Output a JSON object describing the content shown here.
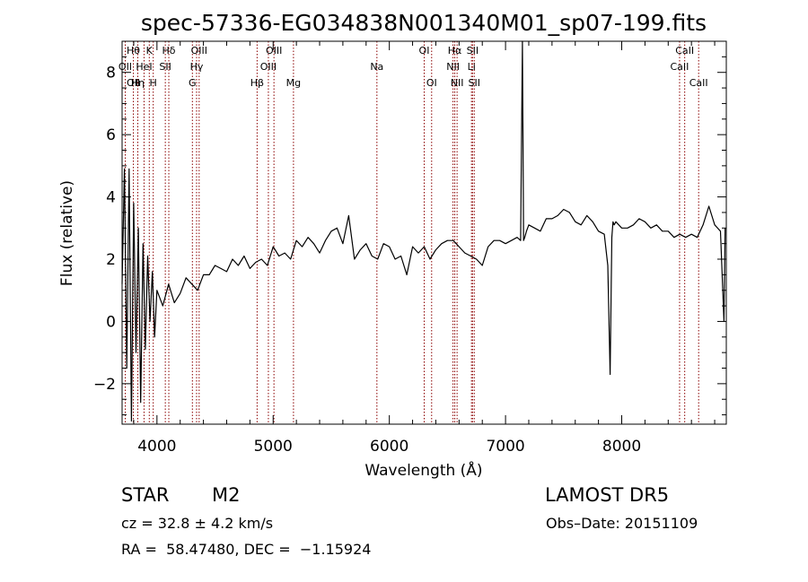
{
  "chart_data": {
    "type": "line",
    "title": "spec-57336-EG034838N001340M01_sp07-199.fits",
    "xlabel": "Wavelength (Å)",
    "ylabel": "Flux (relative)",
    "xlim": [
      3700,
      8900
    ],
    "ylim": [
      -3.3,
      9.0
    ],
    "xticks": [
      4000,
      5000,
      6000,
      7000,
      8000
    ],
    "xtick_labels": [
      "4000",
      "5000",
      "6000",
      "7000",
      "8000"
    ],
    "yticks": [
      -2,
      0,
      2,
      4,
      6,
      8
    ],
    "ytick_labels": [
      "−2",
      "0",
      "2",
      "4",
      "6",
      "8"
    ],
    "grid": false,
    "legend": "none",
    "line_color": "#000000",
    "marker_color": "#8b0000",
    "series": [
      {
        "x": [
          3700,
          3720,
          3740,
          3760,
          3780,
          3800,
          3820,
          3840,
          3860,
          3880,
          3900,
          3920,
          3940,
          3960,
          3980,
          4000,
          4050,
          4100,
          4150,
          4200,
          4250,
          4300,
          4350,
          4400,
          4450,
          4500,
          4550,
          4600,
          4650,
          4700,
          4750,
          4800,
          4850,
          4900,
          4950,
          5000,
          5050,
          5100,
          5150,
          5200,
          5250,
          5300,
          5350,
          5400,
          5450,
          5500,
          5550,
          5600,
          5650,
          5700,
          5750,
          5800,
          5850,
          5900,
          5950,
          6000,
          6050,
          6100,
          6150,
          6200,
          6250,
          6300,
          6350,
          6400,
          6450,
          6500,
          6550,
          6600,
          6650,
          6700,
          6750,
          6800,
          6850,
          6900,
          6950,
          7000,
          7050,
          7100,
          7130,
          7145,
          7155,
          7165,
          7180,
          7200,
          7250,
          7300,
          7350,
          7400,
          7450,
          7500,
          7550,
          7600,
          7650,
          7700,
          7750,
          7800,
          7850,
          7880,
          7900,
          7915,
          7925,
          7935,
          7950,
          8000,
          8050,
          8100,
          8150,
          8200,
          8250,
          8300,
          8350,
          8400,
          8450,
          8500,
          8550,
          8600,
          8650,
          8700,
          8750,
          8800,
          8850,
          8880,
          8890
        ],
        "y": [
          1.2,
          4.9,
          -1.5,
          4.9,
          -3.2,
          3.8,
          -1.0,
          3.0,
          -2.6,
          2.5,
          -0.9,
          2.1,
          0.0,
          1.6,
          -0.5,
          1.0,
          0.5,
          1.2,
          0.6,
          0.9,
          1.4,
          1.2,
          1.0,
          1.5,
          1.5,
          1.8,
          1.7,
          1.6,
          2.0,
          1.8,
          2.1,
          1.7,
          1.9,
          2.0,
          1.8,
          2.4,
          2.1,
          2.2,
          2.0,
          2.6,
          2.4,
          2.7,
          2.5,
          2.2,
          2.6,
          2.9,
          3.0,
          2.5,
          3.4,
          2.0,
          2.3,
          2.5,
          2.1,
          2.0,
          2.5,
          2.4,
          2.0,
          2.1,
          1.5,
          2.4,
          2.2,
          2.4,
          2.0,
          2.3,
          2.5,
          2.6,
          2.6,
          2.4,
          2.2,
          2.1,
          2.0,
          1.8,
          2.4,
          2.6,
          2.6,
          2.5,
          2.6,
          2.7,
          2.6,
          9.0,
          2.6,
          2.7,
          2.9,
          3.1,
          3.0,
          2.9,
          3.3,
          3.3,
          3.4,
          3.6,
          3.5,
          3.2,
          3.1,
          3.4,
          3.2,
          2.9,
          2.8,
          1.8,
          -1.7,
          2.7,
          3.2,
          3.1,
          3.2,
          3.0,
          3.0,
          3.1,
          3.3,
          3.2,
          3.0,
          3.1,
          2.9,
          2.9,
          2.7,
          2.8,
          2.7,
          2.8,
          2.7,
          3.1,
          3.7,
          3.1,
          2.9,
          0.0,
          3.0
        ]
      }
    ],
    "line_markers": [
      {
        "x": 3727,
        "labels": [
          "OII"
        ],
        "rows": [
          1
        ]
      },
      {
        "x": 3797,
        "labels": [
          "Hθ",
          "OII"
        ],
        "rows": [
          0,
          2
        ]
      },
      {
        "x": 3835,
        "labels": [
          "Hη"
        ],
        "rows": [
          2
        ]
      },
      {
        "x": 3889,
        "labels": [
          "HeI"
        ],
        "rows": [
          1
        ]
      },
      {
        "x": 3934,
        "labels": [
          "K"
        ],
        "rows": [
          0
        ]
      },
      {
        "x": 3968,
        "labels": [
          "H"
        ],
        "rows": [
          2
        ]
      },
      {
        "x": 4072,
        "labels": [
          "SII"
        ],
        "rows": [
          1
        ]
      },
      {
        "x": 4102,
        "labels": [
          "Hδ"
        ],
        "rows": [
          0
        ]
      },
      {
        "x": 4305,
        "labels": [
          "G"
        ],
        "rows": [
          2
        ]
      },
      {
        "x": 4341,
        "labels": [
          "Hγ"
        ],
        "rows": [
          1
        ]
      },
      {
        "x": 4363,
        "labels": [
          "OIII"
        ],
        "rows": [
          0
        ]
      },
      {
        "x": 4862,
        "labels": [
          "Hβ"
        ],
        "rows": [
          2
        ]
      },
      {
        "x": 4959,
        "labels": [
          "OIII"
        ],
        "rows": [
          1
        ]
      },
      {
        "x": 5007,
        "labels": [
          "OIII"
        ],
        "rows": [
          0
        ]
      },
      {
        "x": 5175,
        "labels": [
          "Mg"
        ],
        "rows": [
          2
        ]
      },
      {
        "x": 5893,
        "labels": [
          "Na"
        ],
        "rows": [
          1
        ]
      },
      {
        "x": 6300,
        "labels": [
          "OI"
        ],
        "rows": [
          0
        ]
      },
      {
        "x": 6364,
        "labels": [
          "OI"
        ],
        "rows": [
          2
        ]
      },
      {
        "x": 6548,
        "labels": [
          "NII"
        ],
        "rows": [
          1
        ]
      },
      {
        "x": 6563,
        "labels": [
          "Hα"
        ],
        "rows": [
          0
        ]
      },
      {
        "x": 6583,
        "labels": [
          "NII"
        ],
        "rows": [
          2
        ]
      },
      {
        "x": 6707,
        "labels": [
          "Li"
        ],
        "rows": [
          1
        ]
      },
      {
        "x": 6716,
        "labels": [
          "SII"
        ],
        "rows": [
          0
        ]
      },
      {
        "x": 6731,
        "labels": [
          "SII"
        ],
        "rows": [
          2
        ]
      },
      {
        "x": 8498,
        "labels": [
          "CaII"
        ],
        "rows": [
          1
        ]
      },
      {
        "x": 8542,
        "labels": [
          "CaII"
        ],
        "rows": [
          0
        ]
      },
      {
        "x": 8662,
        "labels": [
          "CaII"
        ],
        "rows": [
          2
        ]
      }
    ]
  },
  "info": {
    "object_class": "STAR",
    "subclass": "M2",
    "survey": "LAMOST DR5",
    "cz": "cz = 32.8 ± 4.2 km/s",
    "obs_date": "Obs–Date: 20151109",
    "coords": "RA =  58.47480, DEC =  −1.15924"
  }
}
